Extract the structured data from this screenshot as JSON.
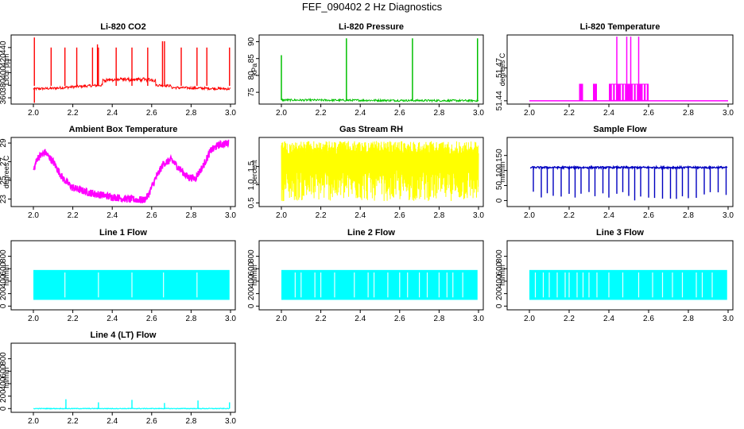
{
  "page_title": "FEF_090402  2 Hz Diagnostics",
  "chart_data": [
    {
      "id": "co2",
      "type": "line",
      "title": "Li-820 CO2",
      "ylabel": "Licor ppm",
      "color": "#ff0000",
      "xlim": [
        2.0,
        3.0
      ],
      "ylim": [
        350,
        460
      ],
      "yticks": [
        360,
        380,
        400,
        420,
        440
      ],
      "xticks": [
        "2.0",
        "2.2",
        "2.4",
        "2.6",
        "2.8",
        "3.0"
      ],
      "yticklabels": [
        "360",
        "380",
        "400",
        "420",
        "440"
      ],
      "series": {
        "kind": "co2",
        "base": 375,
        "spikes": [
          {
            "x": 2.005,
            "y": 456
          },
          {
            "x": 2.09,
            "y": 440
          },
          {
            "x": 2.16,
            "y": 440
          },
          {
            "x": 2.22,
            "y": 440
          },
          {
            "x": 2.3,
            "y": 440
          },
          {
            "x": 2.325,
            "y": 445
          },
          {
            "x": 2.33,
            "y": 440
          },
          {
            "x": 2.42,
            "y": 440
          },
          {
            "x": 2.5,
            "y": 440
          },
          {
            "x": 2.58,
            "y": 440
          },
          {
            "x": 2.655,
            "y": 450
          },
          {
            "x": 2.665,
            "y": 450
          },
          {
            "x": 2.75,
            "y": 440
          },
          {
            "x": 2.83,
            "y": 440
          },
          {
            "x": 2.88,
            "y": 440
          },
          {
            "x": 2.995,
            "y": 440
          }
        ]
      }
    },
    {
      "id": "pressure",
      "type": "line",
      "title": "Li-820 Pressure",
      "ylabel": "kPa",
      "color": "#00c000",
      "xlim": [
        2.0,
        3.0
      ],
      "ylim": [
        71.5,
        92
      ],
      "yticks": [
        75,
        80,
        85,
        90
      ],
      "xticks": [
        "2.0",
        "2.2",
        "2.4",
        "2.6",
        "2.8",
        "3.0"
      ],
      "yticklabels": [
        "75",
        "80",
        "85",
        "90"
      ],
      "series": {
        "kind": "pressure",
        "base": 72.7,
        "spikes": [
          {
            "x": 2.0,
            "y": 86
          },
          {
            "x": 2.33,
            "y": 91
          },
          {
            "x": 2.665,
            "y": 91
          },
          {
            "x": 2.995,
            "y": 91
          }
        ]
      }
    },
    {
      "id": "licor_temp",
      "type": "line",
      "title": "Li-820 Temperature",
      "ylabel": "degrees C",
      "color": "#ff00ff",
      "xlim": [
        2.0,
        3.0
      ],
      "ylim": [
        51.437,
        51.5
      ],
      "yticks": [
        51.44,
        51.47
      ],
      "xticks": [
        "2.0",
        "2.2",
        "2.4",
        "2.6",
        "2.8",
        "3.0"
      ],
      "yticklabels": [
        "51.44",
        "51.47"
      ],
      "series": {
        "kind": "licor_temp",
        "base": 51.44,
        "blocks": [
          [
            2.25,
            2.27
          ],
          [
            2.32,
            2.34
          ],
          [
            2.4,
            2.6
          ]
        ],
        "tall": [
          2.44,
          2.49,
          2.51,
          2.55
        ]
      }
    },
    {
      "id": "ambient_temp",
      "type": "line",
      "title": "Ambient Box Temperature",
      "ylabel": "degrees C",
      "color": "#ff00ff",
      "xlim": [
        2.0,
        3.0
      ],
      "ylim": [
        22.2,
        29.6
      ],
      "yticks": [
        23,
        25,
        27,
        29
      ],
      "xticks": [
        "2.0",
        "2.2",
        "2.4",
        "2.6",
        "2.8",
        "3.0"
      ],
      "yticklabels": [
        "23",
        "25",
        "27",
        "29"
      ],
      "series": {
        "kind": "ambient",
        "points": [
          [
            2.0,
            26.0
          ],
          [
            2.02,
            27.4
          ],
          [
            2.06,
            28.0
          ],
          [
            2.1,
            27.0
          ],
          [
            2.15,
            25.2
          ],
          [
            2.2,
            24.2
          ],
          [
            2.28,
            23.7
          ],
          [
            2.38,
            23.3
          ],
          [
            2.48,
            23.0
          ],
          [
            2.56,
            22.9
          ],
          [
            2.58,
            23.3
          ],
          [
            2.62,
            25.2
          ],
          [
            2.66,
            26.8
          ],
          [
            2.7,
            27.2
          ],
          [
            2.74,
            26.3
          ],
          [
            2.78,
            25.4
          ],
          [
            2.82,
            25.2
          ],
          [
            2.86,
            26.5
          ],
          [
            2.9,
            28.2
          ],
          [
            2.94,
            28.8
          ],
          [
            2.99,
            29.0
          ]
        ]
      }
    },
    {
      "id": "rh",
      "type": "line",
      "title": "Gas Stream RH",
      "ylabel": "percent",
      "color": "#ffff00",
      "xlim": [
        2.0,
        3.0
      ],
      "ylim": [
        0.4,
        2.3
      ],
      "yticks": [
        0.5,
        1.0,
        1.5
      ],
      "xticks": [
        "2.0",
        "2.2",
        "2.4",
        "2.6",
        "2.8",
        "3.0"
      ],
      "yticklabels": [
        "0.5",
        "1.0",
        "1.5"
      ],
      "series": {
        "kind": "rh",
        "min": 0.55,
        "max": 2.2
      }
    },
    {
      "id": "sample_flow",
      "type": "line",
      "title": "Sample Flow",
      "ylabel": "ml/min",
      "color": "#0000c0",
      "xlim": [
        2.0,
        3.0
      ],
      "ylim": [
        -20,
        210
      ],
      "yticks": [
        0,
        50,
        100,
        150
      ],
      "xticks": [
        "2.0",
        "2.2",
        "2.4",
        "2.6",
        "2.8",
        "3.0"
      ],
      "yticklabels": [
        "0",
        "50",
        "100",
        "150"
      ],
      "series": {
        "kind": "flow",
        "high": 110,
        "low": 0,
        "dips": [
          2.02,
          2.06,
          2.09,
          2.12,
          2.16,
          2.2,
          2.23,
          2.26,
          2.3,
          2.33,
          2.37,
          2.4,
          2.44,
          2.47,
          2.5,
          2.53,
          2.56,
          2.6,
          2.63,
          2.67,
          2.71,
          2.74,
          2.77,
          2.8,
          2.84,
          2.88,
          2.91,
          2.95,
          2.99
        ]
      }
    },
    {
      "id": "line1",
      "type": "line",
      "title": "Line 1 Flow",
      "ylabel": "ml/min",
      "color": "#00ffff",
      "xlim": [
        2.0,
        3.0
      ],
      "ylim": [
        -60,
        1050
      ],
      "yticks": [
        0,
        200,
        400,
        600,
        800
      ],
      "xticks": [
        "2.0",
        "2.2",
        "2.4",
        "2.6",
        "2.8",
        "3.0"
      ],
      "yticklabels": [
        "0",
        "200",
        "400",
        "600",
        "800"
      ],
      "series": {
        "kind": "band",
        "lo": 100,
        "hi": 580,
        "gaps": [
          2.16,
          2.33,
          2.5,
          2.66,
          2.83
        ],
        "spikes": []
      }
    },
    {
      "id": "line2",
      "type": "line",
      "title": "Line 2 Flow",
      "ylabel": "ml/min",
      "color": "#00ffff",
      "xlim": [
        2.0,
        3.0
      ],
      "ylim": [
        -60,
        1050
      ],
      "yticks": [
        0,
        200,
        400,
        600,
        800
      ],
      "xticks": [
        "2.0",
        "2.2",
        "2.4",
        "2.6",
        "2.8",
        "3.0"
      ],
      "yticklabels": [
        "0",
        "200",
        "400",
        "600",
        "800"
      ],
      "series": {
        "kind": "band",
        "lo": 100,
        "hi": 580,
        "gaps": [
          2.07,
          2.1,
          2.17,
          2.2,
          2.27,
          2.37,
          2.44,
          2.47,
          2.54,
          2.6,
          2.64,
          2.7,
          2.74,
          2.8,
          2.84,
          2.87,
          2.92
        ],
        "spikes": []
      }
    },
    {
      "id": "line3",
      "type": "line",
      "title": "Line 3 Flow",
      "ylabel": "ml/min",
      "color": "#00ffff",
      "xlim": [
        2.0,
        3.0
      ],
      "ylim": [
        -60,
        1050
      ],
      "yticks": [
        0,
        200,
        400,
        600,
        800
      ],
      "xticks": [
        "2.0",
        "2.2",
        "2.4",
        "2.6",
        "2.8",
        "3.0"
      ],
      "yticklabels": [
        "0",
        "200",
        "400",
        "600",
        "800"
      ],
      "series": {
        "kind": "band",
        "lo": 100,
        "hi": 580,
        "gaps": [
          2.03,
          2.07,
          2.1,
          2.14,
          2.18,
          2.2,
          2.24,
          2.27,
          2.3,
          2.34,
          2.4,
          2.47,
          2.55,
          2.62,
          2.67,
          2.72,
          2.77,
          2.84,
          2.87,
          2.92
        ],
        "spikes": []
      }
    },
    {
      "id": "line4",
      "type": "line",
      "title": "Line 4 (LT) Flow",
      "ylabel": "ml/min",
      "color": "#00ffff",
      "xlim": [
        2.0,
        3.0
      ],
      "ylim": [
        -60,
        1050
      ],
      "yticks": [
        0,
        200,
        400,
        600,
        800
      ],
      "xticks": [
        "2.0",
        "2.2",
        "2.4",
        "2.6",
        "2.8",
        "3.0"
      ],
      "yticklabels": [
        "0",
        "200",
        "400",
        "600",
        "800"
      ],
      "series": {
        "kind": "flat",
        "base": 0,
        "spikes": [
          {
            "x": 2.165,
            "y": 150
          },
          {
            "x": 2.33,
            "y": 100
          },
          {
            "x": 2.5,
            "y": 140
          },
          {
            "x": 2.665,
            "y": 90
          },
          {
            "x": 2.835,
            "y": 130
          },
          {
            "x": 2.995,
            "y": 100
          }
        ]
      }
    }
  ]
}
